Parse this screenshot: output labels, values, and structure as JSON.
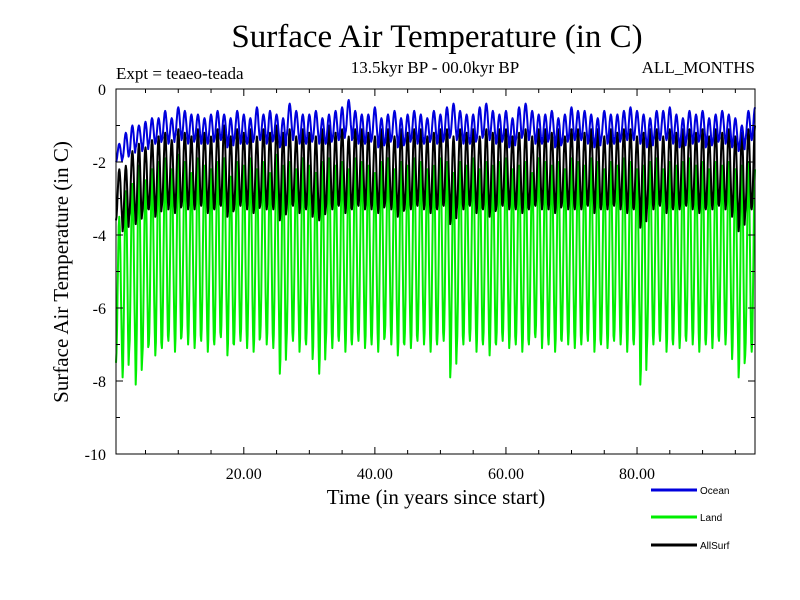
{
  "chart_data": {
    "type": "line",
    "title": "Surface Air Temperature (in C)",
    "subtitle": "13.5kyr BP - 00.0kyr BP",
    "experiment": "Expt = teaeo-teada",
    "season": "ALL_MONTHS",
    "xlabel": "Time (in years since start)",
    "ylabel": "Surface Air Temperature (in C)",
    "xlim": [
      0.5,
      98
    ],
    "ylim": [
      -10,
      0
    ],
    "x_ticks": [
      20,
      40,
      60,
      80
    ],
    "x_tick_labels": [
      "20.00",
      "40.00",
      "60.00",
      "80.00"
    ],
    "y_ticks": [
      0,
      -2,
      -4,
      -6,
      -8,
      -10
    ],
    "y_tick_labels": [
      "0",
      "-2",
      "-4",
      "-6",
      "-8",
      "-10"
    ],
    "legend_position": "bottom-right, below plot",
    "samples_per_year": 12,
    "series": [
      {
        "name": "Land",
        "color": "#00ee00",
        "annual_max": [
          -3.5,
          -2.8,
          -2.6,
          -2.1,
          -2.5,
          -2.2,
          -2.0,
          -1.9,
          -2.2,
          -1.8,
          -2.0,
          -2.3,
          -1.9,
          -2.1,
          -2.2,
          -2.0,
          -1.9,
          -2.4,
          -2.0,
          -2.1,
          -1.9,
          -2.2,
          -2.0,
          -2.3,
          -1.8,
          -2.1,
          -2.0,
          -2.2,
          -1.9,
          -2.1,
          -2.3,
          -2.0,
          -1.9,
          -2.1,
          -2.0,
          -2.2,
          -1.9,
          -2.0,
          -2.1,
          -2.3,
          -2.0,
          -1.9,
          -2.2,
          -2.0,
          -2.1,
          -1.9,
          -2.0,
          -2.2,
          -2.1,
          -1.9,
          -2.0,
          -2.3,
          -2.0,
          -2.1,
          -1.9,
          -2.2,
          -2.0,
          -2.1,
          -2.0,
          -1.9,
          -2.2,
          -2.1,
          -2.0,
          -2.3,
          -1.9,
          -2.0,
          -2.1,
          -2.0,
          -2.2,
          -1.9,
          -2.0,
          -2.1,
          -1.9,
          -2.0,
          -2.2,
          -2.0,
          -2.1,
          -1.9,
          -2.0,
          -2.2,
          -2.1,
          -2.0,
          -1.9,
          -2.2,
          -2.0,
          -2.1,
          -2.0,
          -1.9,
          -2.1,
          -2.0,
          -2.2,
          -2.0,
          -2.1,
          -2.0,
          -2.2,
          -2.1,
          -2.0,
          -2.2
        ],
        "annual_min": [
          -7.5,
          -7.9,
          -7.2,
          -8.1,
          -7.4,
          -7.0,
          -7.3,
          -7.1,
          -6.9,
          -7.2,
          -6.8,
          -7.0,
          -7.1,
          -6.9,
          -7.2,
          -7.0,
          -6.8,
          -7.3,
          -7.0,
          -6.9,
          -7.1,
          -7.2,
          -6.8,
          -7.0,
          -7.1,
          -7.8,
          -7.0,
          -6.9,
          -7.2,
          -7.0,
          -7.4,
          -7.8,
          -7.0,
          -7.1,
          -6.9,
          -7.2,
          -7.0,
          -6.9,
          -7.1,
          -7.0,
          -7.2,
          -6.8,
          -7.0,
          -7.3,
          -7.0,
          -7.1,
          -6.9,
          -7.0,
          -7.2,
          -7.0,
          -6.9,
          -7.9,
          -7.1,
          -7.0,
          -6.9,
          -7.2,
          -7.0,
          -7.3,
          -7.0,
          -6.9,
          -7.1,
          -7.0,
          -7.2,
          -7.0,
          -6.8,
          -7.1,
          -7.0,
          -7.2,
          -6.9,
          -7.0,
          -7.1,
          -7.0,
          -6.9,
          -7.2,
          -7.0,
          -7.1,
          -6.9,
          -7.0,
          -7.2,
          -7.0,
          -8.1,
          -7.1,
          -7.0,
          -6.9,
          -7.2,
          -7.0,
          -7.1,
          -6.9,
          -7.0,
          -7.2,
          -7.0,
          -7.1,
          -6.9,
          -7.0,
          -7.4,
          -7.9,
          -7.3,
          -7.2
        ]
      },
      {
        "name": "AllSurf",
        "color": "#000000",
        "annual_max": [
          -2.2,
          -2.1,
          -1.7,
          -1.5,
          -1.6,
          -1.4,
          -1.3,
          -1.2,
          -1.4,
          -1.1,
          -1.2,
          -1.3,
          -1.1,
          -1.2,
          -1.3,
          -1.1,
          -1.0,
          -1.3,
          -1.1,
          -1.2,
          -1.1,
          -1.3,
          -1.1,
          -1.2,
          -1.0,
          -1.2,
          -1.1,
          -1.3,
          -1.1,
          -1.2,
          -1.3,
          -1.1,
          -1.0,
          -1.2,
          -1.1,
          -1.3,
          -1.1,
          -1.1,
          -1.2,
          -1.3,
          -1.1,
          -1.1,
          -1.3,
          -1.1,
          -1.2,
          -1.1,
          -1.1,
          -1.3,
          -1.2,
          -1.1,
          -1.1,
          -1.3,
          -1.1,
          -1.2,
          -1.1,
          -1.3,
          -1.1,
          -1.2,
          -1.1,
          -1.1,
          -1.3,
          -1.2,
          -1.1,
          -1.3,
          -1.1,
          -1.1,
          -1.2,
          -1.1,
          -1.3,
          -1.1,
          -1.1,
          -1.2,
          -1.1,
          -1.1,
          -1.3,
          -1.1,
          -1.2,
          -1.1,
          -1.1,
          -1.3,
          -1.2,
          -1.1,
          -1.1,
          -1.3,
          -1.1,
          -1.2,
          -1.1,
          -1.1,
          -1.2,
          -1.1,
          -1.3,
          -1.1,
          -1.2,
          -1.1,
          -1.3,
          -1.2,
          -1.1,
          -1.0
        ],
        "annual_min": [
          -3.6,
          -3.9,
          -3.5,
          -3.7,
          -3.4,
          -3.3,
          -3.5,
          -3.2,
          -3.3,
          -3.4,
          -3.2,
          -3.3,
          -3.3,
          -3.2,
          -3.4,
          -3.3,
          -3.2,
          -3.5,
          -3.3,
          -3.2,
          -3.3,
          -3.4,
          -3.2,
          -3.3,
          -3.3,
          -3.6,
          -3.3,
          -3.2,
          -3.4,
          -3.3,
          -3.5,
          -3.6,
          -3.3,
          -3.3,
          -3.2,
          -3.4,
          -3.3,
          -3.2,
          -3.3,
          -3.3,
          -3.4,
          -3.2,
          -3.3,
          -3.5,
          -3.3,
          -3.3,
          -3.2,
          -3.3,
          -3.4,
          -3.3,
          -3.2,
          -3.7,
          -3.3,
          -3.3,
          -3.2,
          -3.4,
          -3.3,
          -3.5,
          -3.3,
          -3.2,
          -3.3,
          -3.3,
          -3.4,
          -3.3,
          -3.2,
          -3.3,
          -3.3,
          -3.4,
          -3.2,
          -3.3,
          -3.3,
          -3.3,
          -3.2,
          -3.4,
          -3.3,
          -3.3,
          -3.2,
          -3.3,
          -3.4,
          -3.3,
          -3.8,
          -3.3,
          -3.3,
          -3.2,
          -3.4,
          -3.3,
          -3.3,
          -3.2,
          -3.3,
          -3.4,
          -3.3,
          -3.3,
          -3.2,
          -3.3,
          -3.5,
          -3.9,
          -3.4,
          -3.3
        ]
      },
      {
        "name": "Ocean",
        "color": "#0000dd",
        "annual_max": [
          -1.5,
          -1.2,
          -1.0,
          -1.0,
          -0.9,
          -0.8,
          -0.8,
          -0.6,
          -0.8,
          -0.5,
          -0.6,
          -0.7,
          -0.7,
          -0.8,
          -0.7,
          -0.6,
          -0.7,
          -0.8,
          -0.6,
          -0.7,
          -0.8,
          -0.5,
          -0.7,
          -0.6,
          -0.7,
          -0.8,
          -0.4,
          -0.6,
          -0.7,
          -0.7,
          -0.6,
          -0.8,
          -0.7,
          -0.6,
          -0.5,
          -0.3,
          -0.6,
          -0.7,
          -0.7,
          -0.5,
          -0.8,
          -0.7,
          -0.6,
          -0.8,
          -0.7,
          -0.6,
          -0.7,
          -0.8,
          -0.6,
          -0.7,
          -0.5,
          -0.4,
          -0.6,
          -0.7,
          -0.7,
          -0.5,
          -0.4,
          -0.6,
          -0.7,
          -0.6,
          -0.8,
          -0.5,
          -0.4,
          -0.6,
          -0.7,
          -0.7,
          -0.6,
          -0.8,
          -0.7,
          -0.5,
          -0.6,
          -0.6,
          -0.7,
          -0.8,
          -0.6,
          -0.7,
          -0.7,
          -0.6,
          -0.5,
          -0.6,
          -0.7,
          -0.8,
          -0.6,
          -0.6,
          -0.5,
          -0.7,
          -0.8,
          -0.6,
          -0.7,
          -0.6,
          -0.8,
          -0.7,
          -0.6,
          -0.7,
          -0.8,
          -1.0,
          -0.6,
          -0.5
        ],
        "annual_min": [
          -2.0,
          -1.9,
          -1.8,
          -1.6,
          -1.7,
          -1.5,
          -1.5,
          -1.4,
          -1.5,
          -1.3,
          -1.4,
          -1.5,
          -1.4,
          -1.5,
          -1.5,
          -1.4,
          -1.4,
          -1.6,
          -1.4,
          -1.5,
          -1.5,
          -1.4,
          -1.4,
          -1.5,
          -1.4,
          -1.6,
          -1.3,
          -1.4,
          -1.5,
          -1.5,
          -1.4,
          -1.5,
          -1.5,
          -1.4,
          -1.4,
          -1.2,
          -1.4,
          -1.5,
          -1.5,
          -1.4,
          -1.6,
          -1.5,
          -1.4,
          -1.6,
          -1.5,
          -1.4,
          -1.5,
          -1.5,
          -1.4,
          -1.5,
          -1.4,
          -1.3,
          -1.4,
          -1.5,
          -1.5,
          -1.4,
          -1.3,
          -1.4,
          -1.5,
          -1.4,
          -1.6,
          -1.4,
          -1.3,
          -1.4,
          -1.5,
          -1.5,
          -1.4,
          -1.6,
          -1.5,
          -1.4,
          -1.4,
          -1.4,
          -1.5,
          -1.6,
          -1.4,
          -1.5,
          -1.5,
          -1.4,
          -1.4,
          -1.4,
          -1.5,
          -1.6,
          -1.4,
          -1.4,
          -1.4,
          -1.5,
          -1.6,
          -1.4,
          -1.5,
          -1.4,
          -1.6,
          -1.5,
          -1.4,
          -1.5,
          -1.6,
          -1.7,
          -1.4,
          -1.4
        ]
      }
    ]
  },
  "legend": {
    "items": [
      {
        "name": "Ocean",
        "label": "Ocean",
        "color": "#0000dd"
      },
      {
        "name": "Land",
        "label": "Land",
        "color": "#00ee00"
      },
      {
        "name": "AllSurf",
        "label": "AllSurf",
        "color": "#000000"
      }
    ]
  }
}
